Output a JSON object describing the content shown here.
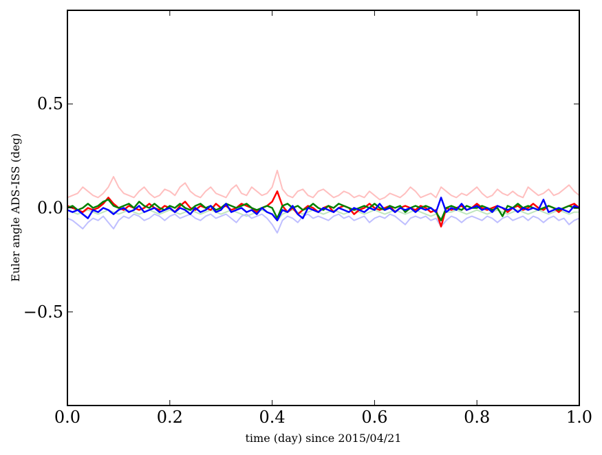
{
  "chart_data": {
    "type": "line",
    "title": "",
    "xlabel": "time (day) since 2015/04/21",
    "ylabel": "Euler angle ADS-ISS (deg)",
    "xlim": [
      0.0,
      1.0
    ],
    "ylim": [
      -0.95,
      0.95
    ],
    "x_ticks": [
      0.0,
      0.2,
      0.4,
      0.6,
      0.8,
      1.0
    ],
    "x_tick_labels": [
      "0.0",
      "0.2",
      "0.4",
      "0.6",
      "0.8",
      "1.0"
    ],
    "y_ticks": [
      -0.5,
      0.0,
      0.5
    ],
    "y_tick_labels": [
      "−0.5",
      "0.0",
      "0.5"
    ],
    "grid": false,
    "legend": "none",
    "x": [
      0.0,
      0.01,
      0.02,
      0.03,
      0.04,
      0.05,
      0.06,
      0.07,
      0.08,
      0.09,
      0.1,
      0.11,
      0.12,
      0.13,
      0.14,
      0.15,
      0.16,
      0.17,
      0.18,
      0.19,
      0.2,
      0.21,
      0.22,
      0.23,
      0.24,
      0.25,
      0.26,
      0.27,
      0.28,
      0.29,
      0.3,
      0.31,
      0.32,
      0.33,
      0.34,
      0.35,
      0.36,
      0.37,
      0.38,
      0.39,
      0.4,
      0.41,
      0.42,
      0.43,
      0.44,
      0.45,
      0.46,
      0.47,
      0.48,
      0.49,
      0.5,
      0.51,
      0.52,
      0.53,
      0.54,
      0.55,
      0.56,
      0.57,
      0.58,
      0.59,
      0.6,
      0.61,
      0.62,
      0.63,
      0.64,
      0.65,
      0.66,
      0.67,
      0.68,
      0.69,
      0.7,
      0.71,
      0.72,
      0.73,
      0.74,
      0.75,
      0.76,
      0.77,
      0.78,
      0.79,
      0.8,
      0.81,
      0.82,
      0.83,
      0.84,
      0.85,
      0.86,
      0.87,
      0.88,
      0.89,
      0.9,
      0.91,
      0.92,
      0.93,
      0.94,
      0.95,
      0.96,
      0.97,
      0.98,
      0.99,
      1.0
    ],
    "series": [
      {
        "color": "#ffbfbf",
        "width": 2,
        "values": [
          0.05,
          0.06,
          0.07,
          0.1,
          0.08,
          0.06,
          0.05,
          0.07,
          0.1,
          0.15,
          0.1,
          0.07,
          0.06,
          0.05,
          0.08,
          0.1,
          0.07,
          0.05,
          0.06,
          0.09,
          0.08,
          0.06,
          0.1,
          0.12,
          0.08,
          0.06,
          0.05,
          0.08,
          0.1,
          0.07,
          0.06,
          0.05,
          0.09,
          0.11,
          0.07,
          0.06,
          0.1,
          0.08,
          0.06,
          0.07,
          0.1,
          0.18,
          0.09,
          0.06,
          0.05,
          0.08,
          0.09,
          0.06,
          0.05,
          0.08,
          0.09,
          0.07,
          0.05,
          0.06,
          0.08,
          0.07,
          0.05,
          0.06,
          0.05,
          0.08,
          0.06,
          0.04,
          0.05,
          0.07,
          0.06,
          0.05,
          0.07,
          0.1,
          0.08,
          0.05,
          0.06,
          0.07,
          0.05,
          0.1,
          0.08,
          0.06,
          0.05,
          0.07,
          0.06,
          0.08,
          0.1,
          0.07,
          0.05,
          0.06,
          0.09,
          0.07,
          0.06,
          0.08,
          0.06,
          0.05,
          0.1,
          0.08,
          0.06,
          0.07,
          0.09,
          0.06,
          0.07,
          0.09,
          0.11,
          0.08,
          0.06
        ]
      },
      {
        "color": "#bfe6bf",
        "width": 2,
        "values": [
          -0.01,
          -0.02,
          -0.03,
          -0.02,
          -0.01,
          -0.02,
          -0.03,
          -0.02,
          -0.01,
          -0.02,
          -0.03,
          -0.02,
          -0.01,
          -0.02,
          -0.03,
          -0.02,
          -0.01,
          -0.02,
          -0.03,
          -0.02,
          -0.01,
          -0.02,
          -0.03,
          -0.02,
          -0.01,
          -0.02,
          -0.03,
          -0.02,
          -0.01,
          -0.02,
          -0.03,
          -0.02,
          -0.01,
          -0.02,
          -0.03,
          -0.04,
          -0.03,
          -0.02,
          -0.01,
          -0.02,
          -0.03,
          -0.06,
          -0.03,
          -0.02,
          -0.01,
          -0.02,
          -0.03,
          -0.02,
          -0.01,
          -0.02,
          -0.03,
          -0.02,
          -0.01,
          -0.02,
          -0.03,
          -0.02,
          -0.01,
          -0.02,
          -0.03,
          -0.02,
          -0.01,
          -0.02,
          -0.03,
          -0.02,
          -0.01,
          -0.02,
          -0.03,
          -0.02,
          -0.01,
          -0.02,
          -0.03,
          -0.04,
          -0.03,
          -0.05,
          -0.02,
          -0.02,
          -0.01,
          -0.02,
          -0.03,
          -0.02,
          -0.01,
          -0.02,
          -0.03,
          -0.02,
          -0.01,
          -0.02,
          -0.03,
          -0.02,
          -0.01,
          -0.02,
          -0.03,
          -0.02,
          -0.01,
          -0.02,
          -0.03,
          -0.02,
          -0.01,
          -0.02,
          -0.03,
          -0.02,
          -0.02
        ]
      },
      {
        "color": "#bfbfff",
        "width": 2,
        "values": [
          -0.05,
          -0.06,
          -0.08,
          -0.1,
          -0.07,
          -0.05,
          -0.06,
          -0.04,
          -0.07,
          -0.1,
          -0.06,
          -0.04,
          -0.05,
          -0.03,
          -0.04,
          -0.06,
          -0.05,
          -0.03,
          -0.04,
          -0.06,
          -0.04,
          -0.03,
          -0.05,
          -0.04,
          -0.03,
          -0.05,
          -0.06,
          -0.04,
          -0.03,
          -0.05,
          -0.04,
          -0.03,
          -0.05,
          -0.07,
          -0.04,
          -0.03,
          -0.05,
          -0.04,
          -0.03,
          -0.05,
          -0.08,
          -0.12,
          -0.06,
          -0.04,
          -0.05,
          -0.07,
          -0.04,
          -0.03,
          -0.05,
          -0.04,
          -0.05,
          -0.06,
          -0.04,
          -0.03,
          -0.05,
          -0.04,
          -0.06,
          -0.05,
          -0.04,
          -0.07,
          -0.05,
          -0.04,
          -0.05,
          -0.03,
          -0.04,
          -0.06,
          -0.08,
          -0.05,
          -0.04,
          -0.05,
          -0.04,
          -0.06,
          -0.05,
          -0.09,
          -0.06,
          -0.04,
          -0.05,
          -0.07,
          -0.05,
          -0.04,
          -0.05,
          -0.06,
          -0.04,
          -0.05,
          -0.07,
          -0.05,
          -0.04,
          -0.06,
          -0.05,
          -0.04,
          -0.06,
          -0.04,
          -0.05,
          -0.07,
          -0.05,
          -0.04,
          -0.06,
          -0.05,
          -0.08,
          -0.06,
          -0.05
        ]
      },
      {
        "color": "#ff0000",
        "width": 2.5,
        "values": [
          0.01,
          0.0,
          -0.01,
          -0.02,
          0.0,
          -0.01,
          0.0,
          0.02,
          0.05,
          0.02,
          0.0,
          -0.01,
          0.01,
          0.0,
          -0.01,
          0.0,
          0.02,
          0.0,
          -0.01,
          0.01,
          0.0,
          -0.02,
          0.01,
          0.03,
          0.0,
          -0.01,
          0.01,
          0.0,
          -0.01,
          0.02,
          0.0,
          0.01,
          -0.01,
          0.0,
          0.02,
          0.01,
          0.0,
          -0.02,
          0.0,
          0.01,
          0.03,
          0.08,
          0.01,
          -0.02,
          0.0,
          -0.03,
          -0.01,
          0.01,
          0.0,
          -0.02,
          0.0,
          0.01,
          -0.02,
          0.0,
          0.01,
          0.0,
          -0.03,
          -0.01,
          0.0,
          0.02,
          0.0,
          -0.01,
          0.0,
          0.01,
          -0.02,
          0.0,
          0.01,
          0.0,
          -0.01,
          0.01,
          0.0,
          -0.02,
          -0.01,
          -0.09,
          0.0,
          -0.01,
          0.0,
          0.01,
          -0.01,
          0.0,
          0.02,
          0.0,
          -0.01,
          0.0,
          0.01,
          0.0,
          -0.02,
          0.0,
          0.01,
          -0.01,
          0.0,
          0.02,
          0.0,
          -0.01,
          0.01,
          0.0,
          -0.02,
          0.0,
          0.01,
          0.02,
          0.0
        ]
      },
      {
        "color": "#008000",
        "width": 2.5,
        "values": [
          0.0,
          0.01,
          -0.01,
          0.0,
          0.02,
          0.0,
          0.01,
          0.03,
          0.04,
          0.01,
          0.0,
          0.01,
          0.02,
          0.0,
          0.03,
          0.01,
          0.0,
          0.02,
          0.0,
          -0.01,
          0.01,
          0.0,
          0.02,
          0.0,
          -0.01,
          0.01,
          0.02,
          0.0,
          0.01,
          -0.01,
          0.0,
          0.02,
          0.01,
          0.0,
          0.01,
          0.02,
          0.0,
          -0.01,
          0.0,
          0.01,
          0.0,
          -0.05,
          0.01,
          0.02,
          0.0,
          0.01,
          -0.01,
          0.0,
          0.02,
          0.0,
          -0.01,
          0.01,
          0.0,
          0.02,
          0.01,
          0.0,
          -0.01,
          0.0,
          0.01,
          0.0,
          0.02,
          0.0,
          -0.01,
          0.01,
          0.0,
          0.01,
          -0.02,
          0.0,
          0.01,
          0.0,
          0.01,
          0.0,
          -0.02,
          -0.06,
          0.0,
          0.01,
          0.0,
          -0.01,
          0.01,
          0.0,
          0.0,
          0.01,
          0.0,
          -0.01,
          0.0,
          -0.04,
          0.01,
          0.0,
          0.02,
          0.0,
          0.01,
          0.0,
          -0.01,
          0.0,
          0.01,
          0.0,
          -0.01,
          0.0,
          0.01,
          0.0,
          0.0
        ]
      },
      {
        "color": "#0000ff",
        "width": 2.5,
        "values": [
          -0.01,
          -0.02,
          -0.01,
          -0.03,
          -0.05,
          -0.01,
          -0.02,
          0.0,
          -0.01,
          -0.03,
          -0.01,
          0.0,
          -0.02,
          -0.01,
          0.01,
          -0.02,
          -0.01,
          0.0,
          -0.02,
          -0.01,
          0.0,
          -0.02,
          0.0,
          -0.01,
          -0.03,
          0.0,
          -0.02,
          -0.01,
          0.01,
          -0.02,
          -0.01,
          0.02,
          -0.02,
          -0.01,
          0.0,
          -0.02,
          -0.01,
          -0.03,
          0.0,
          -0.02,
          -0.03,
          -0.06,
          -0.01,
          -0.02,
          0.01,
          -0.03,
          -0.05,
          0.0,
          -0.01,
          -0.02,
          0.0,
          -0.01,
          -0.02,
          0.0,
          -0.01,
          -0.02,
          0.0,
          -0.01,
          -0.02,
          0.0,
          -0.01,
          0.02,
          -0.01,
          0.0,
          -0.02,
          0.0,
          -0.01,
          0.0,
          -0.02,
          0.0,
          -0.01,
          0.0,
          -0.02,
          0.05,
          -0.02,
          0.0,
          -0.01,
          0.02,
          -0.01,
          0.0,
          0.01,
          -0.01,
          0.0,
          -0.02,
          0.01,
          0.0,
          -0.01,
          0.0,
          -0.02,
          0.0,
          -0.01,
          0.0,
          -0.01,
          0.04,
          -0.02,
          -0.01,
          0.0,
          -0.01,
          -0.02,
          0.01,
          0.0
        ]
      }
    ]
  }
}
